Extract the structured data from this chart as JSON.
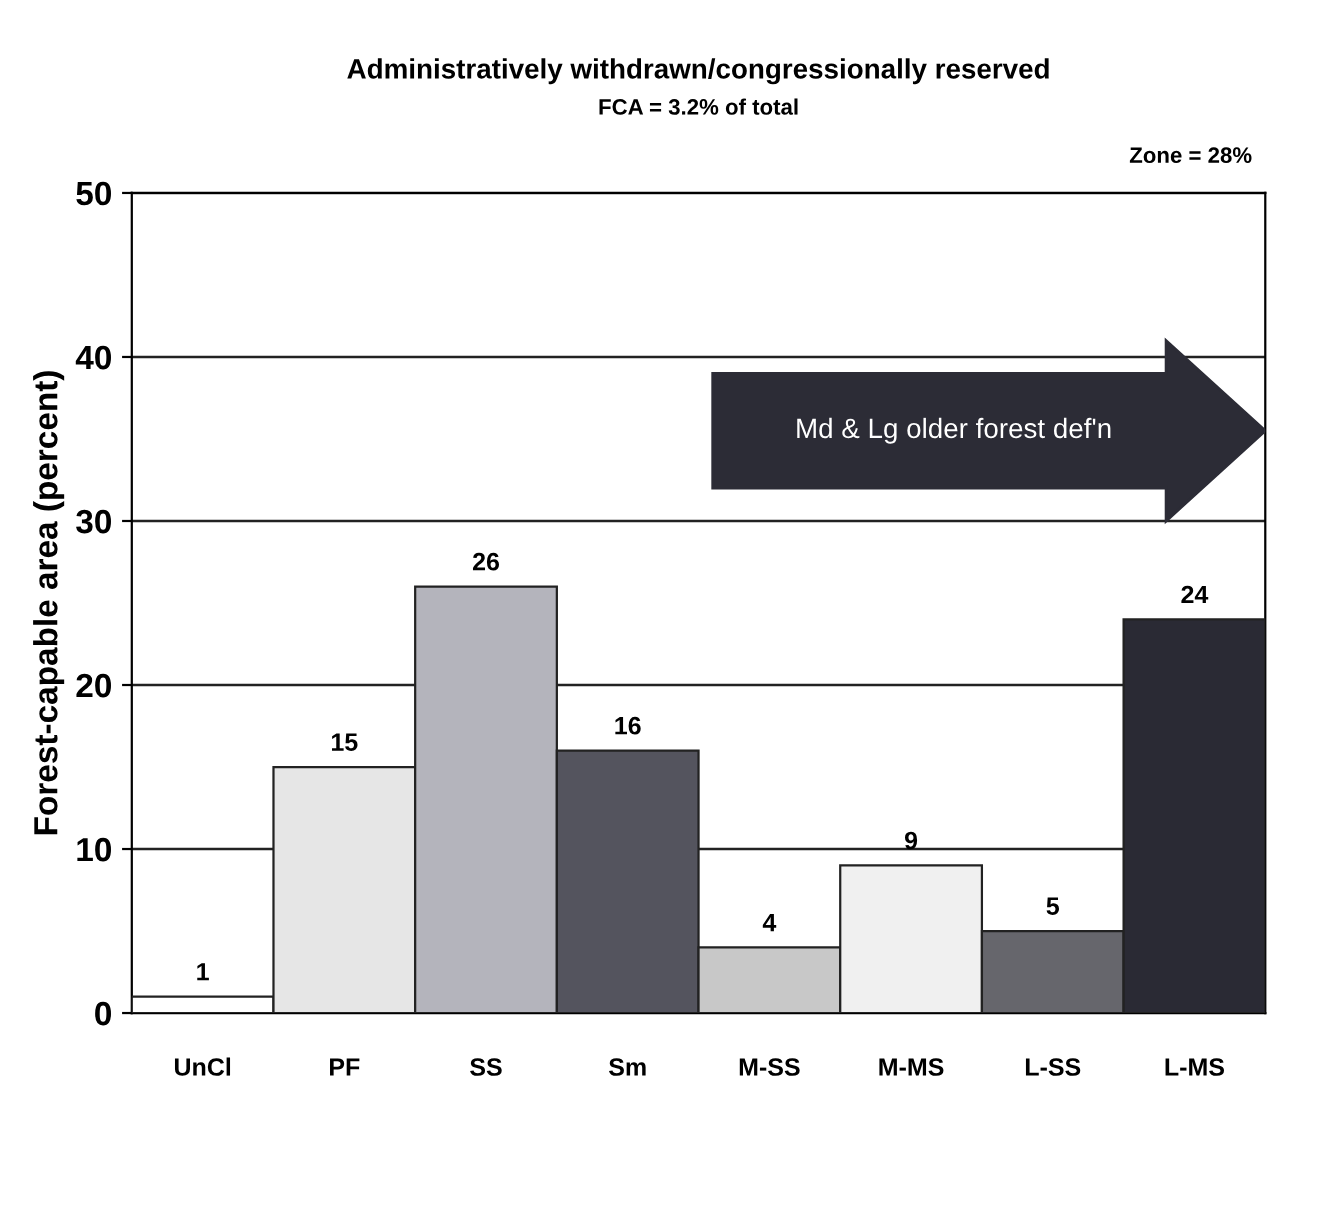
{
  "chart_data": {
    "type": "bar",
    "title": "Administratively withdrawn/congressionally reserved",
    "subtitle": "FCA = 3.2% of total",
    "ylabel": "Forest-capable area (percent)",
    "categories": [
      "UnCl",
      "PF",
      "SS",
      "Sm",
      "M-SS",
      "M-MS",
      "L-SS",
      "L-MS"
    ],
    "values": [
      1,
      15,
      26,
      16,
      4,
      9,
      5,
      24
    ],
    "colors": [
      "#ffffff",
      "#e6e6e6",
      "#b4b4bc",
      "#54545e",
      "#c8c8c8",
      "#f0f0f0",
      "#66666c",
      "#2a2a34"
    ],
    "ylim": [
      0,
      50
    ],
    "yticks": [
      0,
      10,
      20,
      30,
      40,
      50
    ],
    "grid": "y",
    "data_labels": true,
    "annotations": [
      "Zone = 28%",
      "Md & Lg older forest def'n"
    ]
  }
}
